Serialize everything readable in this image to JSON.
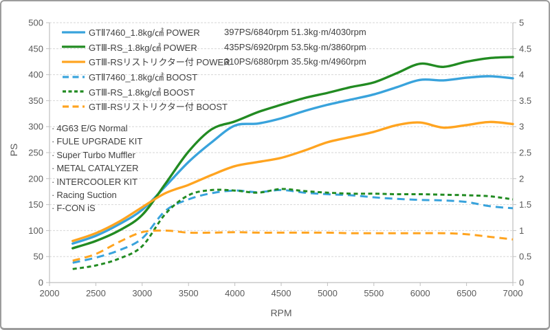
{
  "chart_data": {
    "type": "line",
    "title": "",
    "xlabel": "RPM",
    "ylabel": "PS",
    "x_range": [
      2000,
      7000
    ],
    "x_ticks": [
      2000,
      2500,
      3000,
      3500,
      4000,
      4500,
      5000,
      5500,
      6000,
      6500,
      7000
    ],
    "y_left_range": [
      0,
      500
    ],
    "y_left_ticks": [
      0,
      50,
      100,
      150,
      200,
      250,
      300,
      350,
      400,
      450,
      500
    ],
    "y_right_range": [
      0,
      5
    ],
    "y_right_ticks": [
      0,
      0.5,
      1,
      1.5,
      2,
      2.5,
      3,
      3.5,
      4,
      4.5,
      5
    ],
    "grid": "horizontal",
    "legend_position": "top-left-inside",
    "x": [
      2250,
      2500,
      2750,
      3000,
      3250,
      3500,
      3750,
      4000,
      4250,
      4500,
      4750,
      5000,
      5250,
      5500,
      5750,
      6000,
      6250,
      6500,
      6750,
      7000
    ],
    "series": [
      {
        "key": "gt2-7460-power",
        "name": "GTⅡ7460_1.8kg/㎠ POWER",
        "peak_stats": "397PS/6840rpm 51.3kg·m/4030rpm",
        "axis": "left",
        "style": "solid",
        "color": "#39A3DC",
        "values": [
          75,
          90,
          112,
          140,
          185,
          232,
          270,
          302,
          306,
          316,
          330,
          342,
          352,
          362,
          376,
          390,
          389,
          394,
          397,
          393
        ]
      },
      {
        "key": "gt3-rs-power",
        "name": "GTⅢ-RS_1.8kg/㎠ POWER",
        "peak_stats": "435PS/6920rpm 53.5kg·m/3860rpm",
        "axis": "left",
        "style": "solid",
        "color": "#228B22",
        "values": [
          66,
          80,
          100,
          130,
          190,
          252,
          295,
          310,
          328,
          342,
          355,
          365,
          376,
          385,
          403,
          421,
          415,
          425,
          432,
          434
        ]
      },
      {
        "key": "gt3-rs-restrictor-power",
        "name": "GTⅢ-RSリストリクター付 POWER",
        "peak_stats": "310PS/6880rpm 35.5kg·m/4960rpm",
        "axis": "left",
        "style": "solid",
        "color": "#FFA420",
        "values": [
          80,
          95,
          117,
          145,
          172,
          188,
          207,
          224,
          232,
          240,
          254,
          270,
          280,
          290,
          303,
          308,
          298,
          303,
          309,
          305
        ]
      },
      {
        "key": "gt2-7460-boost",
        "name": "GTⅡ7460_1.8kg/㎠ BOOST",
        "peak_stats": "",
        "axis": "right",
        "style": "long-dash",
        "color": "#39A3DC",
        "values": [
          0.38,
          0.48,
          0.62,
          0.85,
          1.38,
          1.6,
          1.72,
          1.77,
          1.74,
          1.78,
          1.73,
          1.7,
          1.68,
          1.64,
          1.61,
          1.59,
          1.58,
          1.55,
          1.47,
          1.43
        ]
      },
      {
        "key": "gt3-rs-boost",
        "name": "GTⅢ-RS_1.8kg/㎠ BOOST",
        "peak_stats": "",
        "axis": "right",
        "style": "short-dash",
        "color": "#228B22",
        "values": [
          0.26,
          0.33,
          0.46,
          0.7,
          1.32,
          1.68,
          1.78,
          1.77,
          1.73,
          1.8,
          1.76,
          1.73,
          1.71,
          1.71,
          1.7,
          1.7,
          1.69,
          1.68,
          1.66,
          1.6
        ]
      },
      {
        "key": "gt3-rs-restrictor-boost",
        "name": "GTⅢ-RSリストリクター付 BOOST",
        "peak_stats": "",
        "axis": "right",
        "style": "long-dash",
        "color": "#FFA420",
        "values": [
          0.42,
          0.55,
          0.78,
          0.97,
          1.0,
          0.96,
          0.96,
          0.97,
          0.96,
          0.96,
          0.96,
          0.96,
          0.95,
          0.95,
          0.95,
          0.95,
          0.95,
          0.93,
          0.88,
          0.83
        ]
      }
    ]
  },
  "mods": {
    "bullet": "·",
    "items": [
      "4G63 E/G Normal",
      "FULE UPGRADE KIT",
      "Super Turbo Muffler",
      "METAL CATALYZER",
      "INTERCOOLER KIT",
      "Racing Suction",
      "F-CON iS"
    ]
  },
  "colors": {
    "background": "#FFFFFF",
    "frame_border": "#9C9C9C",
    "grid": "#D6D6D6",
    "axis": "#BFBFBF",
    "tick_text": "#595959",
    "text": "#3F3F3F"
  }
}
